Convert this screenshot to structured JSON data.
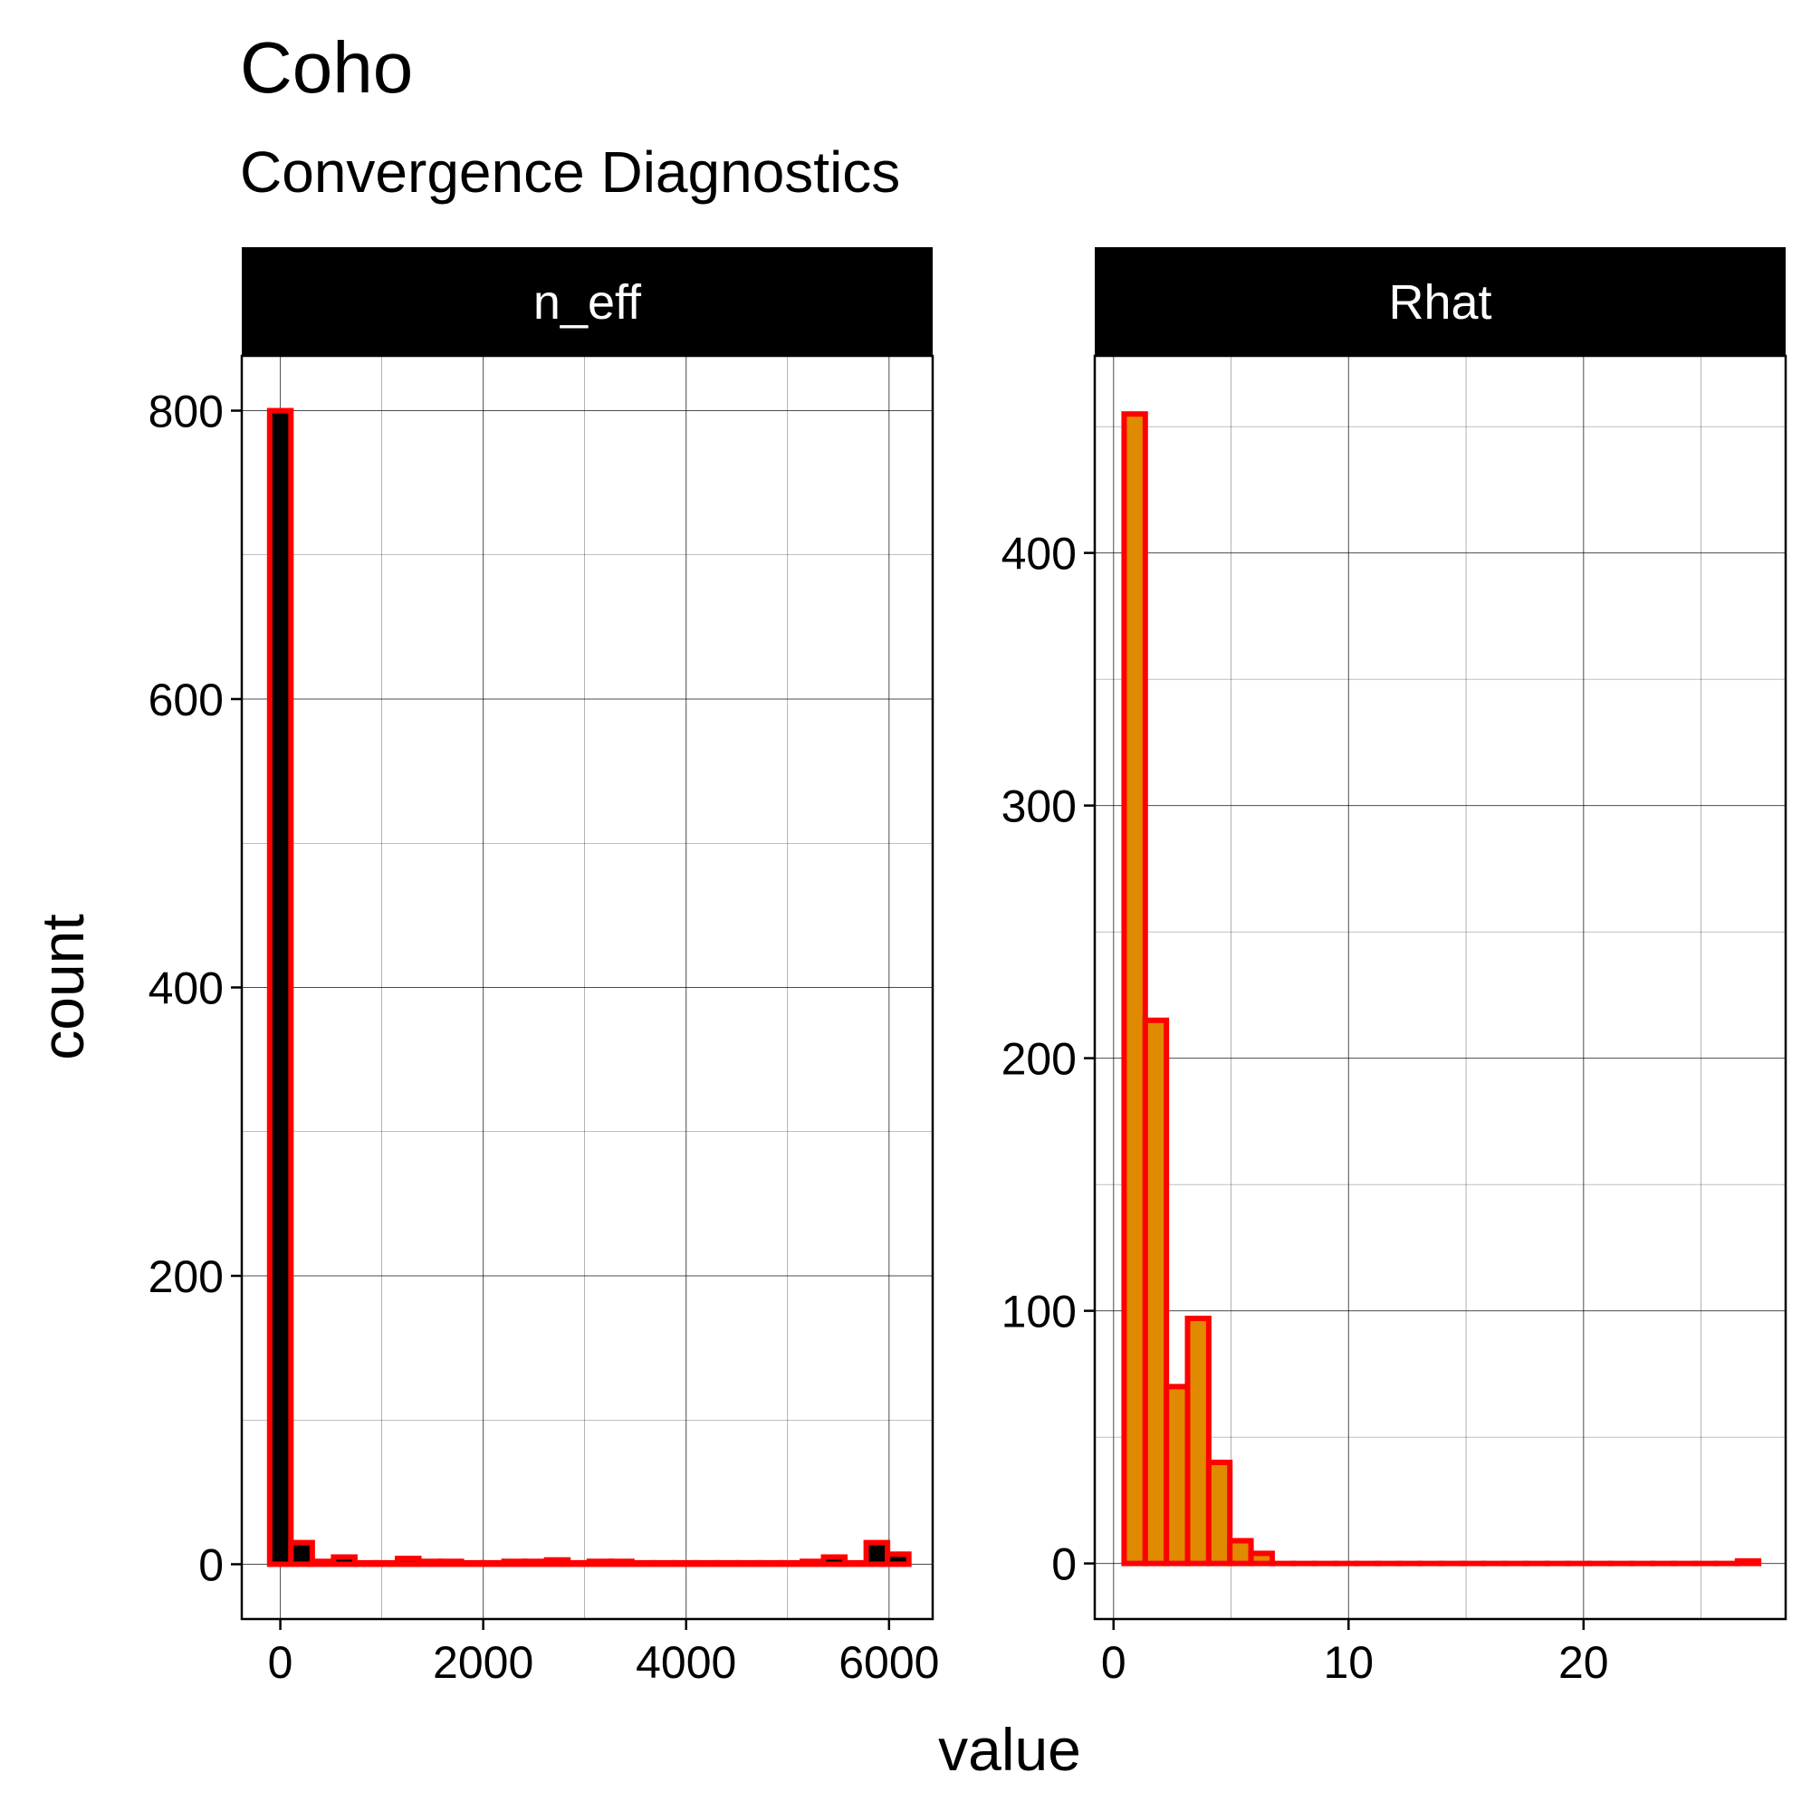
{
  "title": "Coho",
  "subtitle": "Convergence Diagnostics",
  "chart_data": {
    "type": "bar",
    "xlabel": "value",
    "ylabel": "count",
    "grid": true,
    "facets": [
      {
        "name": "n_eff",
        "fill": "#000000",
        "outline": "#ff0000",
        "xlim": [
          -380,
          6430
        ],
        "ylim": [
          -38,
          838
        ],
        "xticks": [
          0,
          2000,
          4000,
          6000
        ],
        "yticks": [
          0,
          200,
          400,
          600,
          800
        ],
        "bin_width": 210,
        "bins": [
          {
            "x": 0,
            "count": 800
          },
          {
            "x": 210,
            "count": 15
          },
          {
            "x": 420,
            "count": 2
          },
          {
            "x": 630,
            "count": 5
          },
          {
            "x": 840,
            "count": 1
          },
          {
            "x": 1050,
            "count": 1
          },
          {
            "x": 1260,
            "count": 4
          },
          {
            "x": 1470,
            "count": 2
          },
          {
            "x": 1680,
            "count": 2
          },
          {
            "x": 1890,
            "count": 1
          },
          {
            "x": 2100,
            "count": 1
          },
          {
            "x": 2310,
            "count": 2
          },
          {
            "x": 2520,
            "count": 2
          },
          {
            "x": 2730,
            "count": 3
          },
          {
            "x": 2940,
            "count": 1
          },
          {
            "x": 3150,
            "count": 2
          },
          {
            "x": 3360,
            "count": 2
          },
          {
            "x": 3570,
            "count": 1
          },
          {
            "x": 3780,
            "count": 1
          },
          {
            "x": 3990,
            "count": 1
          },
          {
            "x": 4200,
            "count": 1
          },
          {
            "x": 4410,
            "count": 1
          },
          {
            "x": 4620,
            "count": 1
          },
          {
            "x": 4830,
            "count": 1
          },
          {
            "x": 5040,
            "count": 1
          },
          {
            "x": 5250,
            "count": 2
          },
          {
            "x": 5460,
            "count": 5
          },
          {
            "x": 5670,
            "count": 1
          },
          {
            "x": 5880,
            "count": 15
          },
          {
            "x": 6090,
            "count": 7
          }
        ]
      },
      {
        "name": "Rhat",
        "fill": "#e08a00",
        "outline": "#ff0000",
        "xlim": [
          -0.8,
          28.6
        ],
        "ylim": [
          -22,
          478
        ],
        "xticks": [
          0,
          10,
          20
        ],
        "yticks": [
          0,
          100,
          200,
          300,
          400
        ],
        "bin_width": 0.9,
        "bins": [
          {
            "x": 0.9,
            "count": 455
          },
          {
            "x": 1.8,
            "count": 215
          },
          {
            "x": 2.7,
            "count": 70
          },
          {
            "x": 3.6,
            "count": 97
          },
          {
            "x": 4.5,
            "count": 40
          },
          {
            "x": 5.4,
            "count": 9
          },
          {
            "x": 6.3,
            "count": 4
          },
          {
            "x": 7.2,
            "count": 0
          },
          {
            "x": 8.1,
            "count": 0
          },
          {
            "x": 9.0,
            "count": 0
          },
          {
            "x": 9.9,
            "count": 0
          },
          {
            "x": 10.8,
            "count": 0
          },
          {
            "x": 11.7,
            "count": 0
          },
          {
            "x": 12.6,
            "count": 0
          },
          {
            "x": 13.5,
            "count": 0
          },
          {
            "x": 14.4,
            "count": 0
          },
          {
            "x": 15.3,
            "count": 0
          },
          {
            "x": 16.2,
            "count": 0
          },
          {
            "x": 17.1,
            "count": 0
          },
          {
            "x": 18.0,
            "count": 0
          },
          {
            "x": 18.9,
            "count": 0
          },
          {
            "x": 19.8,
            "count": 0
          },
          {
            "x": 20.7,
            "count": 0
          },
          {
            "x": 21.6,
            "count": 0
          },
          {
            "x": 22.5,
            "count": 0
          },
          {
            "x": 23.4,
            "count": 0
          },
          {
            "x": 24.3,
            "count": 0
          },
          {
            "x": 25.2,
            "count": 0
          },
          {
            "x": 26.1,
            "count": 0
          },
          {
            "x": 27.0,
            "count": 1
          }
        ]
      }
    ]
  }
}
